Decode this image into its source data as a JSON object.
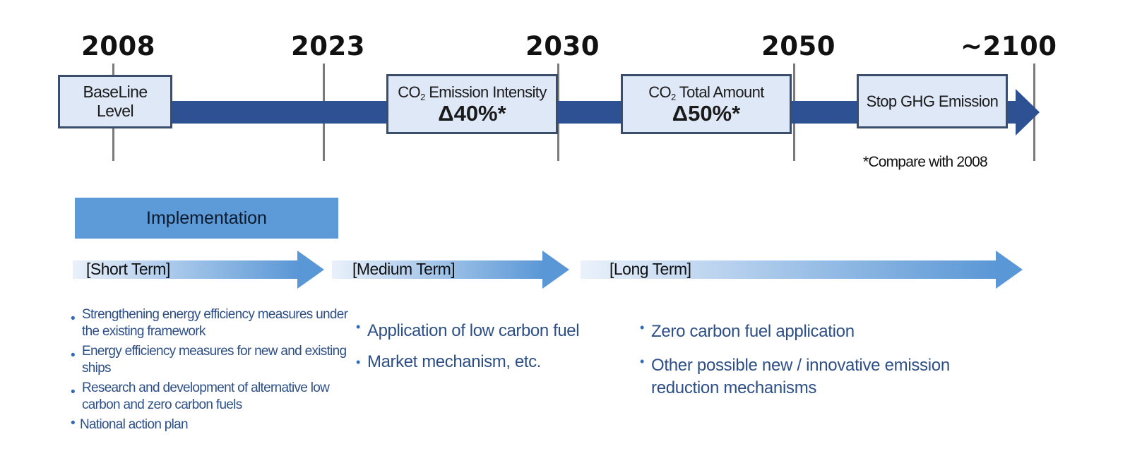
{
  "timeline": {
    "years": [
      "2008",
      "2023",
      "2030",
      "2050",
      "~2100"
    ],
    "baseline_box": {
      "line1": "BaseLine",
      "line2": "Level"
    },
    "intensity_box": {
      "prefix": "CO",
      "sub": "2",
      "label": " Emission Intensity",
      "value": "Δ40%*"
    },
    "total_box": {
      "prefix": "CO",
      "sub": "2",
      "label": " Total Amount",
      "value": "Δ50%*"
    },
    "stop_box": {
      "label": "Stop GHG Emission"
    },
    "note": "*Compare with 2008"
  },
  "implementation": {
    "label": "Implementation"
  },
  "terms": {
    "short": {
      "label": "[Short Term]",
      "items": [
        "Strengthening energy efficiency measures under the existing framework",
        "Energy efficiency measures for new and existing ships",
        "Research and development of alternative low carbon and zero carbon fuels",
        "National action plan"
      ]
    },
    "medium": {
      "label": "[Medium Term]",
      "items": [
        "Application of low carbon fuel",
        "Market mechanism, etc."
      ]
    },
    "long": {
      "label": "[Long Term]",
      "items": [
        "Zero carbon fuel application",
        "Other possible new / innovative emission reduction mechanisms"
      ]
    }
  },
  "colors": {
    "timeline_bar": "#2d5192",
    "box_fill": "#dfe8f6",
    "implementation_bar": "#5c9ad8",
    "bullet_text": "#2d4f86"
  }
}
